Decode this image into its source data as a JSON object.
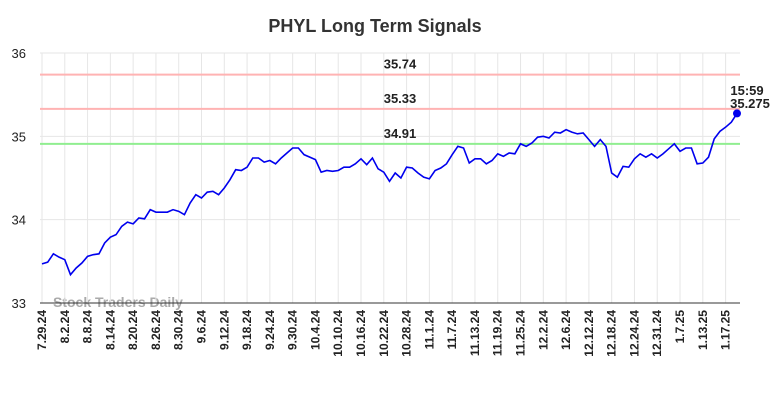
{
  "chart_data": {
    "type": "line",
    "title": "PHYL Long Term Signals",
    "watermark": "Stock Traders Daily",
    "last_time": "15:59",
    "categories": [
      "7.29.24",
      null,
      null,
      null,
      "8.2.24",
      null,
      null,
      null,
      "8.8.24",
      null,
      null,
      null,
      "8.14.24",
      null,
      null,
      null,
      "8.20.24",
      null,
      null,
      null,
      "8.26.24",
      null,
      null,
      null,
      "8.30.24",
      null,
      null,
      null,
      "9.6.24",
      null,
      null,
      null,
      "9.12.24",
      null,
      null,
      null,
      "9.18.24",
      null,
      null,
      null,
      "9.24.24",
      null,
      null,
      null,
      "9.30.24",
      null,
      null,
      null,
      "10.4.24",
      null,
      null,
      null,
      "10.10.24",
      null,
      null,
      null,
      "10.16.24",
      null,
      null,
      null,
      "10.22.24",
      null,
      null,
      null,
      "10.28.24",
      null,
      null,
      null,
      "11.1.24",
      null,
      null,
      null,
      "11.7.24",
      null,
      null,
      null,
      "11.13.24",
      null,
      null,
      null,
      "11.19.24",
      null,
      null,
      null,
      "11.25.24",
      null,
      null,
      null,
      "12.2.24",
      null,
      null,
      null,
      "12.6.24",
      null,
      null,
      null,
      "12.12.24",
      null,
      null,
      null,
      "12.18.24",
      null,
      null,
      null,
      "12.24.24",
      null,
      null,
      null,
      "12.31.24",
      null,
      null,
      null,
      "1.7.25",
      null,
      null,
      null,
      "1.13.25",
      null,
      null,
      null,
      "1.17.25",
      null,
      null
    ],
    "series": [
      {
        "color": "#0000ee",
        "values": [
          33.47,
          33.49,
          33.59,
          33.55,
          33.52,
          33.34,
          33.42,
          33.48,
          33.56,
          33.58,
          33.59,
          33.72,
          33.79,
          33.82,
          33.92,
          33.97,
          33.95,
          34.02,
          34.01,
          34.12,
          34.09,
          34.09,
          34.09,
          34.12,
          34.1,
          34.06,
          34.2,
          34.3,
          34.26,
          34.33,
          34.34,
          34.3,
          34.38,
          34.48,
          34.6,
          34.59,
          34.63,
          34.74,
          34.74,
          34.69,
          34.71,
          34.67,
          34.74,
          34.8,
          34.86,
          34.86,
          34.78,
          34.75,
          34.72,
          34.57,
          34.59,
          34.58,
          34.59,
          34.63,
          34.63,
          34.67,
          34.73,
          34.66,
          34.74,
          34.61,
          34.57,
          34.46,
          34.56,
          34.5,
          34.63,
          34.62,
          34.56,
          34.51,
          34.49,
          34.59,
          34.62,
          34.67,
          34.78,
          34.88,
          34.86,
          34.68,
          34.73,
          34.73,
          34.67,
          34.71,
          34.79,
          34.76,
          34.8,
          34.79,
          34.91,
          34.88,
          34.92,
          34.99,
          35.0,
          34.98,
          35.05,
          35.04,
          35.08,
          35.05,
          35.03,
          35.04,
          34.96,
          34.88,
          34.96,
          34.88,
          34.56,
          34.51,
          34.64,
          34.63,
          34.73,
          34.79,
          34.75,
          34.79,
          34.74,
          34.79,
          34.85,
          34.91,
          34.82,
          34.86,
          34.86,
          34.67,
          34.68,
          34.75,
          34.97,
          35.06,
          35.11,
          35.17,
          35.275
        ]
      }
    ],
    "hlines": [
      {
        "value": 35.74,
        "color": "#ffb3b3",
        "label_color": "#8b0000"
      },
      {
        "value": 35.33,
        "color": "#ffb3b3",
        "label_color": "#8b0000"
      },
      {
        "value": 34.91,
        "color": "#90ee90",
        "label_color": "#006400"
      }
    ],
    "ylim": [
      33,
      36
    ],
    "yticks": [
      33,
      34,
      35,
      36
    ],
    "grid": true
  }
}
